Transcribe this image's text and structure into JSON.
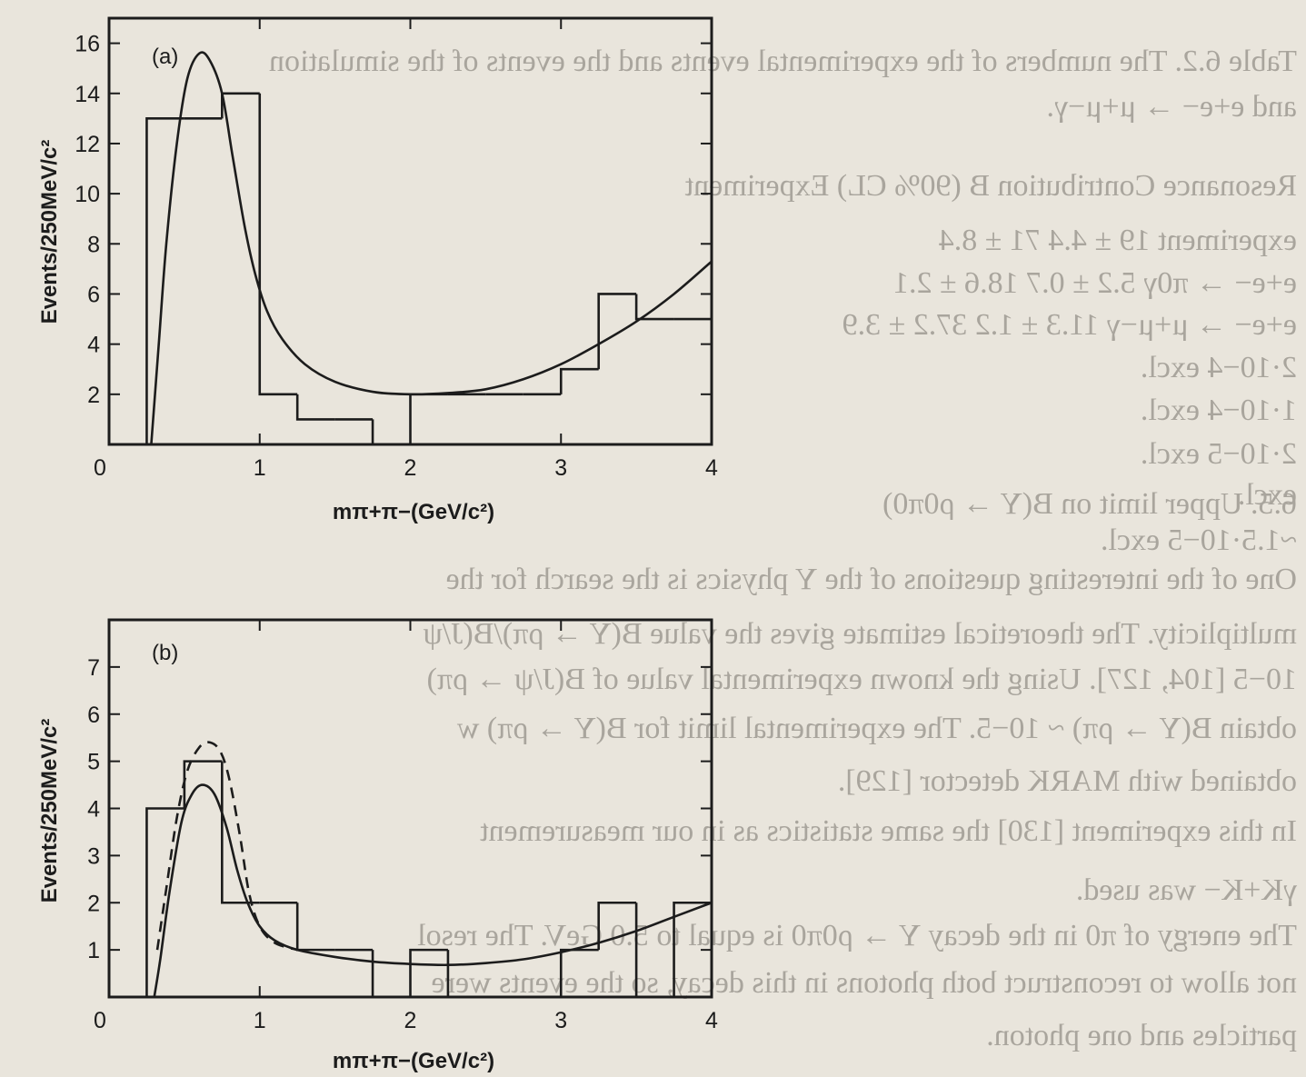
{
  "background_text": {
    "lines": [
      "Table 6.2. The numbers of the experimental events and the events of the simulation",
      "and e+e− → μ+μ−γ.",
      "Resonance   Contribution   B (90% CL)   Experiment",
      "experiment   19 ± 4.4   71 ± 8.4",
      "e+e− → π0γ   5.2 ± 0.7   18.6 ± 2.1",
      "e+e− → μ+μ−γ   11.3 ± 1.2   37.2 ± 3.9",
      "2·10−4   excl.",
      "1·10−4   excl.",
      "2·10−5   excl.",
      "excl.",
      "~1.5·10−5   excl.",
      "6.5. Upper limit on B(Υ → ρ0π0)",
      "One of the interesting questions of the Υ physics is the search for the",
      "multiplicity. The theoretical estimate gives the value B(Υ → ρπ)/B(J/ψ",
      "10−5 [104, 127]. Using the known experimental value of B(J/ψ → ρπ)",
      "obtain B(Υ → ρπ) ~ 10−5. The experimental limit for B(Υ → ρπ) w",
      "obtained with MARK detector [129].",
      "In this experiment [130] the same statistics as in our measurement",
      "γK+K− was used.",
      "The energy of π0 in the decay Υ → ρ0π0 is equal to 5.0 GeV. The resol",
      "not allow to reconstruct both photons in this decay, so the events were",
      "particles and one photon."
    ]
  },
  "chart_data": [
    {
      "type": "histogram",
      "panel_label": "(a)",
      "ylabel": "Events/250MeV/c²",
      "xlabel": "mπ+π−(GeV/c²)",
      "xlim": [
        0,
        4
      ],
      "ylim": [
        0,
        17
      ],
      "xticks": [
        "0",
        "1",
        "2",
        "3",
        "4"
      ],
      "yticks": [
        "2",
        "4",
        "6",
        "8",
        "10",
        "12",
        "14",
        "16"
      ],
      "bin_edges": [
        0.25,
        0.5,
        0.75,
        1.0,
        1.25,
        1.5,
        1.75,
        2.0,
        2.25,
        2.5,
        2.75,
        3.0,
        3.25,
        3.5,
        3.75,
        4.0
      ],
      "values": [
        13,
        13,
        14,
        2,
        1,
        1,
        0,
        2,
        2,
        2,
        2,
        3,
        6,
        5,
        5
      ],
      "curves": [
        {
          "style": "solid",
          "points": [
            [
              0.28,
              0
            ],
            [
              0.33,
              4
            ],
            [
              0.38,
              8
            ],
            [
              0.45,
              12
            ],
            [
              0.52,
              14.6
            ],
            [
              0.6,
              15.6
            ],
            [
              0.67,
              15.3
            ],
            [
              0.75,
              14
            ],
            [
              0.82,
              11.5
            ],
            [
              0.9,
              8.7
            ],
            [
              0.97,
              6.8
            ],
            [
              1.05,
              5.3
            ],
            [
              1.15,
              4.2
            ],
            [
              1.3,
              3.2
            ],
            [
              1.5,
              2.5
            ],
            [
              1.75,
              2.1
            ],
            [
              2.0,
              2.0
            ],
            [
              2.25,
              2.05
            ],
            [
              2.5,
              2.2
            ],
            [
              2.75,
              2.6
            ],
            [
              3.0,
              3.2
            ],
            [
              3.25,
              4.0
            ],
            [
              3.5,
              4.9
            ],
            [
              3.75,
              6.0
            ],
            [
              4.0,
              7.3
            ]
          ]
        }
      ]
    },
    {
      "type": "histogram",
      "panel_label": "(b)",
      "ylabel": "Events/250MeV/c²",
      "xlabel": "mπ+π−(GeV/c²)",
      "xlim": [
        0,
        4
      ],
      "ylim": [
        0,
        8
      ],
      "xticks": [
        "0",
        "1",
        "2",
        "3",
        "4"
      ],
      "yticks": [
        "1",
        "2",
        "3",
        "4",
        "5",
        "6",
        "7"
      ],
      "bin_edges": [
        0.25,
        0.5,
        0.75,
        1.0,
        1.25,
        1.5,
        1.75,
        2.0,
        2.25,
        2.5,
        2.75,
        3.0,
        3.25,
        3.5,
        3.75,
        4.0
      ],
      "values": [
        4,
        5,
        2,
        2,
        1,
        1,
        0,
        1,
        0,
        0,
        0,
        1,
        2,
        0,
        2
      ],
      "curves": [
        {
          "style": "solid",
          "points": [
            [
              0.3,
              0
            ],
            [
              0.34,
              0.8
            ],
            [
              0.4,
              2.2
            ],
            [
              0.48,
              3.7
            ],
            [
              0.55,
              4.3
            ],
            [
              0.62,
              4.5
            ],
            [
              0.7,
              4.3
            ],
            [
              0.78,
              3.6
            ],
            [
              0.85,
              2.7
            ],
            [
              0.92,
              2.0
            ],
            [
              1.0,
              1.5
            ],
            [
              1.1,
              1.2
            ],
            [
              1.25,
              1.0
            ],
            [
              1.5,
              0.85
            ],
            [
              1.75,
              0.75
            ],
            [
              2.0,
              0.7
            ],
            [
              2.25,
              0.68
            ],
            [
              2.5,
              0.72
            ],
            [
              2.75,
              0.8
            ],
            [
              3.0,
              0.95
            ],
            [
              3.25,
              1.15
            ],
            [
              3.5,
              1.4
            ],
            [
              3.75,
              1.7
            ],
            [
              4.0,
              2.0
            ]
          ]
        },
        {
          "style": "dashed",
          "points": [
            [
              0.32,
              1.0
            ],
            [
              0.38,
              2.3
            ],
            [
              0.45,
              3.8
            ],
            [
              0.52,
              4.8
            ],
            [
              0.6,
              5.3
            ],
            [
              0.67,
              5.4
            ],
            [
              0.74,
              5.2
            ],
            [
              0.8,
              4.6
            ],
            [
              0.87,
              3.4
            ],
            [
              0.93,
              2.2
            ],
            [
              1.0,
              1.5
            ],
            [
              1.1,
              1.15
            ],
            [
              1.25,
              1.0
            ]
          ]
        }
      ]
    }
  ]
}
